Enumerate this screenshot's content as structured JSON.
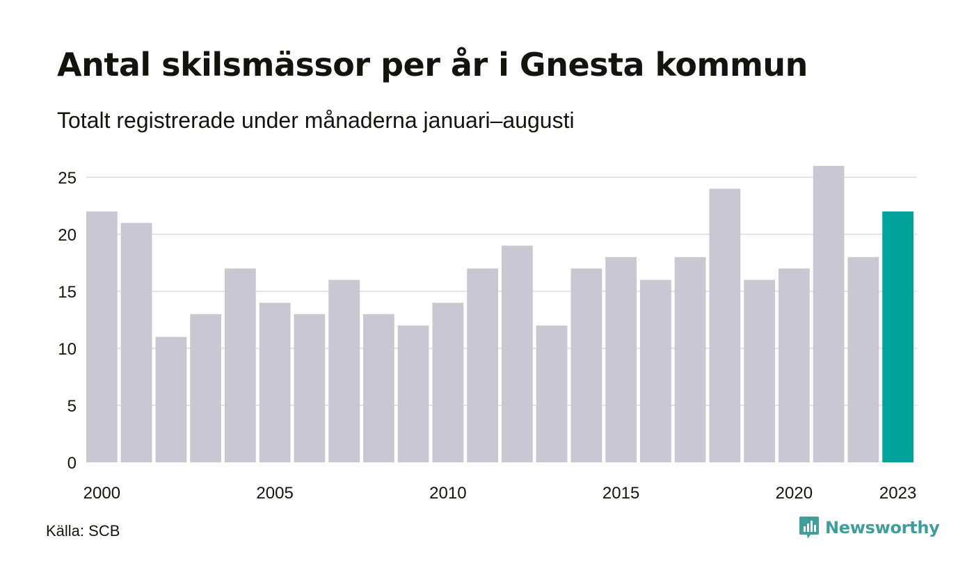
{
  "header": {
    "title": "Antal skilsmässor per år i Gnesta kommun",
    "subtitle": "Totalt registrerade under månaderna januari–augusti"
  },
  "footer": {
    "source": "Källa: SCB",
    "brand": "Newsworthy",
    "brand_icon": "bar-chart-logo-icon"
  },
  "chart_data": {
    "type": "bar",
    "categories": [
      "2000",
      "2001",
      "2002",
      "2003",
      "2004",
      "2005",
      "2006",
      "2007",
      "2008",
      "2009",
      "2010",
      "2011",
      "2012",
      "2013",
      "2014",
      "2015",
      "2016",
      "2017",
      "2018",
      "2019",
      "2020",
      "2021",
      "2022",
      "2023"
    ],
    "values": [
      22,
      21,
      11,
      13,
      17,
      14,
      13,
      16,
      13,
      12,
      14,
      17,
      19,
      12,
      17,
      18,
      16,
      18,
      24,
      16,
      17,
      26,
      18,
      22
    ],
    "x_tick_labels": [
      "2000",
      "2005",
      "2010",
      "2015",
      "2020",
      "2023"
    ],
    "y_ticks": [
      0,
      5,
      10,
      15,
      20,
      25
    ],
    "ylim": [
      0,
      26
    ],
    "grid": true,
    "colors": {
      "bar": "#c8c7d2",
      "highlight": "#00a39a",
      "grid": "#e4e4e8"
    },
    "highlight_category": "2023"
  }
}
